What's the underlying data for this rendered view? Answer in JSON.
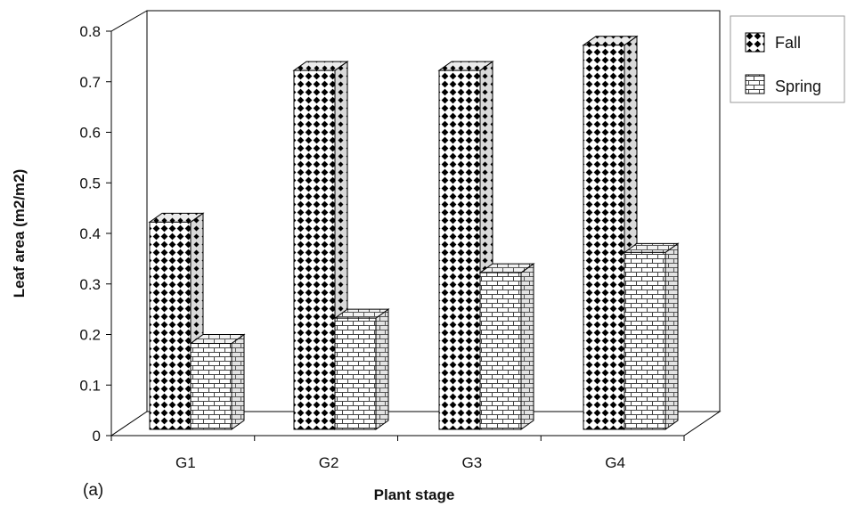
{
  "chart_data": {
    "type": "bar",
    "panel_label": "(a)",
    "xlabel": "Plant stage",
    "ylabel": "Leaf area  (m2/m2)",
    "ylim": [
      0,
      0.8
    ],
    "yticks": [
      "0",
      "0.1",
      "0.2",
      "0.3",
      "0.4",
      "0.5",
      "0.6",
      "0.7",
      "0.8"
    ],
    "categories": [
      "G1",
      "G2",
      "G3",
      "G4"
    ],
    "series": [
      {
        "name": "Fall",
        "values": [
          0.41,
          0.71,
          0.71,
          0.76
        ],
        "pattern": "dots"
      },
      {
        "name": "Spring",
        "values": [
          0.17,
          0.22,
          0.31,
          0.35
        ],
        "pattern": "bricks"
      }
    ],
    "grid": false,
    "legend_position": "top-right",
    "style": "3d-clustered-bar"
  }
}
